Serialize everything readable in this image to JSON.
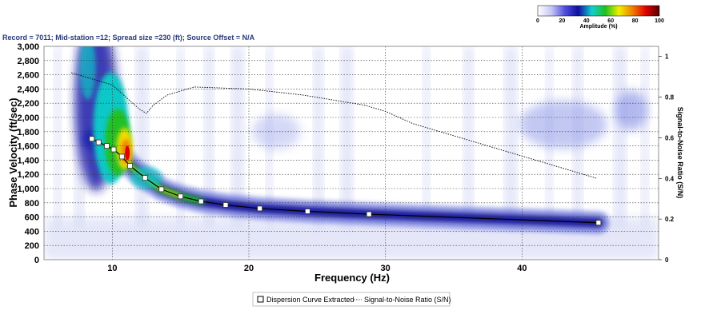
{
  "chart_data": {
    "type": "heatmap",
    "subtitle": "Record = 7011; Mid-station =12; Spread size =230 (ft); Source Offset = N/A",
    "xlabel": "Frequency (Hz)",
    "ylabel": "Phase Velocity (ft/sec)",
    "y2label": "Signal-to-Noise Ratio (S/N)",
    "xlim": [
      5,
      50
    ],
    "ylim": [
      0,
      3000
    ],
    "y2lim": [
      0,
      1.05
    ],
    "x_ticks": [
      "10",
      "20",
      "30",
      "40"
    ],
    "x_tick_values": [
      10,
      20,
      30,
      40
    ],
    "y_ticks": [
      "0",
      "200",
      "400",
      "600",
      "800",
      "1,000",
      "1,200",
      "1,400",
      "1,600",
      "1,800",
      "2,000",
      "2,200",
      "2,400",
      "2,600",
      "2,800",
      "3,000"
    ],
    "y_tick_values": [
      0,
      200,
      400,
      600,
      800,
      1000,
      1200,
      1400,
      1600,
      1800,
      2000,
      2200,
      2400,
      2600,
      2800,
      3000
    ],
    "y2_ticks": [
      "0",
      "0.2",
      "0.4",
      "0.6",
      "0.8",
      "1"
    ],
    "y2_tick_values": [
      0,
      0.2,
      0.4,
      0.6,
      0.8,
      1
    ],
    "grid": true,
    "colorbar": {
      "label": "Amplitude (%)",
      "ticks": [
        "0",
        "20",
        "40",
        "60",
        "80",
        "100"
      ],
      "tick_values": [
        0,
        20,
        40,
        60,
        80,
        100
      ],
      "colors": [
        "#ffffff",
        "#c8c8f5",
        "#5050e0",
        "#1010a0",
        "#10d0d0",
        "#20c020",
        "#f0f000",
        "#f08000",
        "#e00000",
        "#500000"
      ]
    },
    "series": [
      {
        "name": "Dispersion Curve Extracted",
        "x": [
          8.5,
          9.0,
          9.6,
          10.1,
          10.7,
          11.3,
          12.4,
          13.6,
          15.0,
          16.5,
          18.3,
          20.8,
          24.3,
          28.8,
          45.6
        ],
        "y": [
          1700,
          1650,
          1600,
          1550,
          1450,
          1320,
          1150,
          990,
          890,
          820,
          770,
          720,
          680,
          640,
          520
        ]
      },
      {
        "name": "Signal-to-Noise Ratio (S/N)",
        "axis": "y2",
        "x": [
          14.0,
          16.0,
          20.0,
          24.0,
          28.5,
          30.0,
          32.0,
          35.0,
          38.0,
          41.0,
          44.0,
          45.5
        ],
        "y": [
          0.81,
          0.85,
          0.84,
          0.81,
          0.76,
          0.73,
          0.67,
          0.61,
          0.55,
          0.49,
          0.43,
          0.4
        ]
      }
    ],
    "snr_extension": {
      "x": [
        7.0,
        10.0,
        12.0,
        12.5,
        13.0,
        14.0
      ],
      "y": [
        0.92,
        0.86,
        0.74,
        0.72,
        0.76,
        0.81
      ]
    },
    "legend_position": "bottom-center"
  }
}
